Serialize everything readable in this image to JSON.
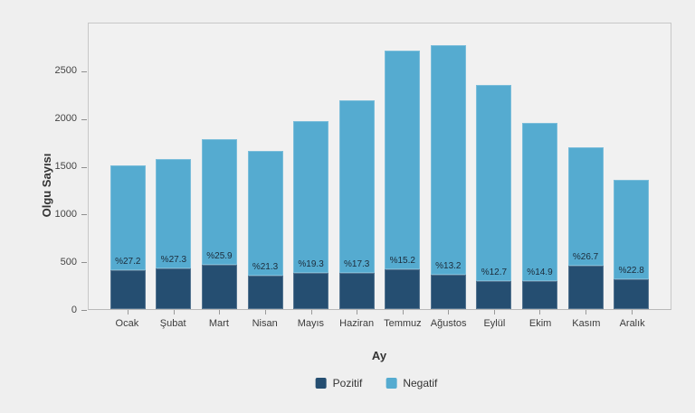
{
  "figure": {
    "background": "#efefef",
    "plot_background": "#f1f1f1",
    "plot_border_color": "#c7c7c7"
  },
  "chart_data": {
    "type": "bar",
    "stacked": true,
    "title": "",
    "xlabel": "Ay",
    "ylabel": "Olgu Sayısı",
    "categories": [
      "Ocak",
      "Şubat",
      "Mart",
      "Nisan",
      "Mayıs",
      "Haziran",
      "Temmuz",
      "Ağustos",
      "Eylül",
      "Ekim",
      "Kasım",
      "Aralık"
    ],
    "series": [
      {
        "name": "Pozitif",
        "color": "#254e71",
        "values": [
          411,
          430,
          461,
          354,
          380,
          378,
          412,
          364,
          298,
          291,
          451,
          309
        ]
      },
      {
        "name": "Negatif",
        "color": "#55abd0",
        "values": [
          1099,
          1145,
          1319,
          1306,
          1590,
          1807,
          2298,
          2396,
          2052,
          1659,
          1239,
          1046
        ]
      }
    ],
    "totals": [
      1510,
      1575,
      1780,
      1660,
      1970,
      2185,
      2710,
      2760,
      2350,
      1950,
      1690,
      1355
    ],
    "bar_labels": [
      "%27.2",
      "%27.3",
      "%25.9",
      "%21.3",
      "%19.3",
      "%17.3",
      "%15.2",
      "%13.2",
      "%12.7",
      "%14.9",
      "%26.7",
      "%22.8"
    ],
    "yticks": [
      0,
      500,
      1000,
      1500,
      2000,
      2500
    ],
    "ylim": [
      0,
      3010
    ],
    "grid": false,
    "legend_position": "bottom-center"
  }
}
